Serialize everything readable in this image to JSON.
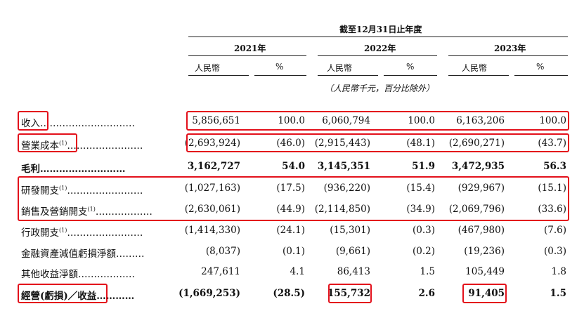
{
  "header": {
    "period": "截至12月31日止年度",
    "years": [
      "2021年",
      "2022年",
      "2023年"
    ],
    "currency": "人民幣",
    "percent": "%",
    "note": "（人民幣千元，百分比除外）"
  },
  "rows": [
    {
      "label": "收入",
      "sup": "",
      "dots": "…………………………",
      "bold": false,
      "values": [
        "5,856,651",
        "100.0",
        "6,060,794",
        "100.0",
        "6,163,206",
        "100.0"
      ]
    },
    {
      "label": "營業成本",
      "sup": "(1)",
      "dots": "……………………",
      "bold": false,
      "values": [
        "(2,693,924)",
        "(46.0)",
        "(2,915,443)",
        "(48.1)",
        "(2,690,271)",
        "(43.7)"
      ]
    },
    {
      "label": "毛利",
      "sup": "",
      "dots": "………………………",
      "bold": true,
      "values": [
        "3,162,727",
        "54.0",
        "3,145,351",
        "51.9",
        "3,472,935",
        "56.3"
      ]
    },
    {
      "label": "研發開支",
      "sup": "(1)",
      "dots": "……………………",
      "bold": false,
      "values": [
        "(1,027,163)",
        "(17.5)",
        "(936,220)",
        "(15.4)",
        "(929,967)",
        "(15.1)"
      ]
    },
    {
      "label": "銷售及營銷開支",
      "sup": "(1)",
      "dots": "………………",
      "bold": false,
      "values": [
        "(2,630,061)",
        "(44.9)",
        "(2,114,850)",
        "(34.9)",
        "(2,069,796)",
        "(33.6)"
      ]
    },
    {
      "label": "行政開支",
      "sup": "(1)",
      "dots": "……………………",
      "bold": false,
      "values": [
        "(1,414,330)",
        "(24.1)",
        "(15,301)",
        "(0.3)",
        "(467,980)",
        "(7.6)"
      ]
    },
    {
      "label": "金融資產減值虧損淨額",
      "sup": "",
      "dots": "………",
      "bold": false,
      "values": [
        "(8,037)",
        "(0.1)",
        "(9,661)",
        "(0.2)",
        "(19,236)",
        "(0.3)"
      ]
    },
    {
      "label": "其他收益淨額",
      "sup": "",
      "dots": "………………",
      "bold": false,
      "values": [
        "247,611",
        "4.1",
        "86,413",
        "1.5",
        "105,449",
        "1.8"
      ]
    },
    {
      "label": "經營(虧損)／收益",
      "sup": "",
      "dots": "…………",
      "bold": true,
      "values": [
        "(1,669,253)",
        "(28.5)",
        "155,732",
        "2.6",
        "91,405",
        "1.5"
      ]
    }
  ],
  "highlight_color": "#e3101b"
}
